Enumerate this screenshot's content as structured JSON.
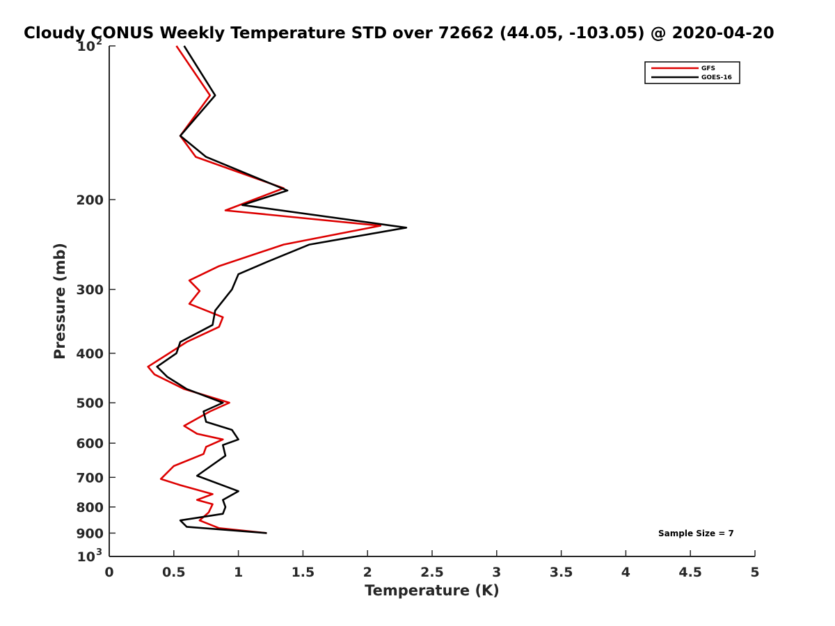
{
  "chart_data": {
    "type": "line",
    "title": "Cloudy CONUS Weekly Temperature STD over 72662 (44.05, -103.05) @ 2020-04-20",
    "xlabel": "Temperature (K)",
    "ylabel": "Pressure (mb)",
    "xlim": [
      0,
      5
    ],
    "ylim": [
      100,
      1000
    ],
    "y_scale": "log",
    "y_reversed": true,
    "x_ticks": [
      "0",
      "0.5",
      "1",
      "1.5",
      "2",
      "2.5",
      "3",
      "3.5",
      "4",
      "4.5",
      "5"
    ],
    "y_ticks": [
      {
        "value": 100,
        "base": "10",
        "exp": "2"
      },
      {
        "value": 200,
        "label": "200"
      },
      {
        "value": 300,
        "label": "300"
      },
      {
        "value": 400,
        "label": "400"
      },
      {
        "value": 500,
        "label": "500"
      },
      {
        "value": 600,
        "label": "600"
      },
      {
        "value": 700,
        "label": "700"
      },
      {
        "value": 800,
        "label": "800"
      },
      {
        "value": 900,
        "label": "900"
      },
      {
        "value": 1000,
        "base": "10",
        "exp": "3"
      }
    ],
    "legend_position": "top-right",
    "grid": false,
    "annotation": "Sample Size = 7",
    "series": [
      {
        "name": "GFS",
        "color": "#dd0000",
        "points": [
          [
            0.52,
            100
          ],
          [
            0.78,
            125
          ],
          [
            0.55,
            150
          ],
          [
            0.67,
            165
          ],
          [
            1.35,
            190
          ],
          [
            0.9,
            210
          ],
          [
            2.1,
            225
          ],
          [
            1.35,
            245
          ],
          [
            0.85,
            270
          ],
          [
            0.62,
            288
          ],
          [
            0.7,
            302
          ],
          [
            0.62,
            320
          ],
          [
            0.88,
            340
          ],
          [
            0.85,
            355
          ],
          [
            0.6,
            380
          ],
          [
            0.45,
            402
          ],
          [
            0.3,
            425
          ],
          [
            0.35,
            440
          ],
          [
            0.58,
            470
          ],
          [
            0.93,
            500
          ],
          [
            0.78,
            520
          ],
          [
            0.58,
            555
          ],
          [
            0.68,
            575
          ],
          [
            0.88,
            590
          ],
          [
            0.75,
            610
          ],
          [
            0.73,
            630
          ],
          [
            0.5,
            665
          ],
          [
            0.4,
            705
          ],
          [
            0.55,
            725
          ],
          [
            0.8,
            755
          ],
          [
            0.68,
            775
          ],
          [
            0.8,
            790
          ],
          [
            0.77,
            820
          ],
          [
            0.7,
            850
          ],
          [
            0.85,
            880
          ],
          [
            1.22,
            900
          ]
        ]
      },
      {
        "name": "GOES-16",
        "color": "#000000",
        "points": [
          [
            0.58,
            100
          ],
          [
            0.82,
            125
          ],
          [
            0.55,
            150
          ],
          [
            0.75,
            165
          ],
          [
            1.38,
            192
          ],
          [
            1.03,
            205
          ],
          [
            2.3,
            227
          ],
          [
            1.55,
            245
          ],
          [
            1.22,
            265
          ],
          [
            1.0,
            280
          ],
          [
            0.95,
            300
          ],
          [
            0.82,
            330
          ],
          [
            0.8,
            352
          ],
          [
            0.55,
            380
          ],
          [
            0.52,
            400
          ],
          [
            0.37,
            425
          ],
          [
            0.45,
            445
          ],
          [
            0.6,
            470
          ],
          [
            0.88,
            500
          ],
          [
            0.73,
            520
          ],
          [
            0.75,
            545
          ],
          [
            0.95,
            565
          ],
          [
            1.0,
            590
          ],
          [
            0.88,
            605
          ],
          [
            0.9,
            635
          ],
          [
            0.68,
            695
          ],
          [
            1.0,
            745
          ],
          [
            0.88,
            775
          ],
          [
            0.9,
            800
          ],
          [
            0.88,
            825
          ],
          [
            0.55,
            850
          ],
          [
            0.6,
            875
          ],
          [
            1.22,
            900
          ]
        ]
      }
    ]
  }
}
